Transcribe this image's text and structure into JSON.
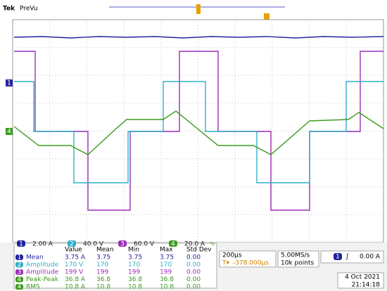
{
  "header": {
    "brand": "Tek",
    "status": "PreVu"
  },
  "channels": [
    {
      "label": "1",
      "scale": "2.00 A",
      "color": "#23239f"
    },
    {
      "label": "2",
      "scale": "40.0 V",
      "color": "#2fb0c8"
    },
    {
      "label": "3",
      "scale": "60.0 V",
      "color": "#9a2fb8"
    },
    {
      "label": "4",
      "scale": "20.0 A",
      "suffix": "∿",
      "color": "#3c9a1c"
    }
  ],
  "measurements": {
    "columns": [
      "Value",
      "Mean",
      "Min",
      "Max",
      "Std Dev"
    ],
    "rows": [
      {
        "channel": 0,
        "name": "Mean",
        "values": [
          "3.75 A",
          "3.75",
          "3.75",
          "3.75",
          "0.00"
        ]
      },
      {
        "channel": 1,
        "name": "Amplitude",
        "values": [
          "170 V",
          "170",
          "170",
          "170",
          "0.00"
        ]
      },
      {
        "channel": 2,
        "name": "Amplitude",
        "values": [
          "199 V",
          "199",
          "199",
          "199",
          "0.00"
        ]
      },
      {
        "channel": 3,
        "name": "Peak-Peak",
        "values": [
          "36.8 A",
          "36.8",
          "36.8",
          "36.8",
          "0.00"
        ]
      },
      {
        "channel": 3,
        "name": "RMS",
        "values": [
          "10.8 A",
          "10.8",
          "10.8",
          "10.8",
          "0.00"
        ]
      }
    ]
  },
  "timebase": {
    "scale": "200µs",
    "trigger_position": "-378.000µs",
    "sample_rate": "5.00MS/s",
    "record_length": "10k points"
  },
  "trigger": {
    "level": "0.00 A"
  },
  "date": "4 Oct 2021",
  "time": "21:14:18"
}
